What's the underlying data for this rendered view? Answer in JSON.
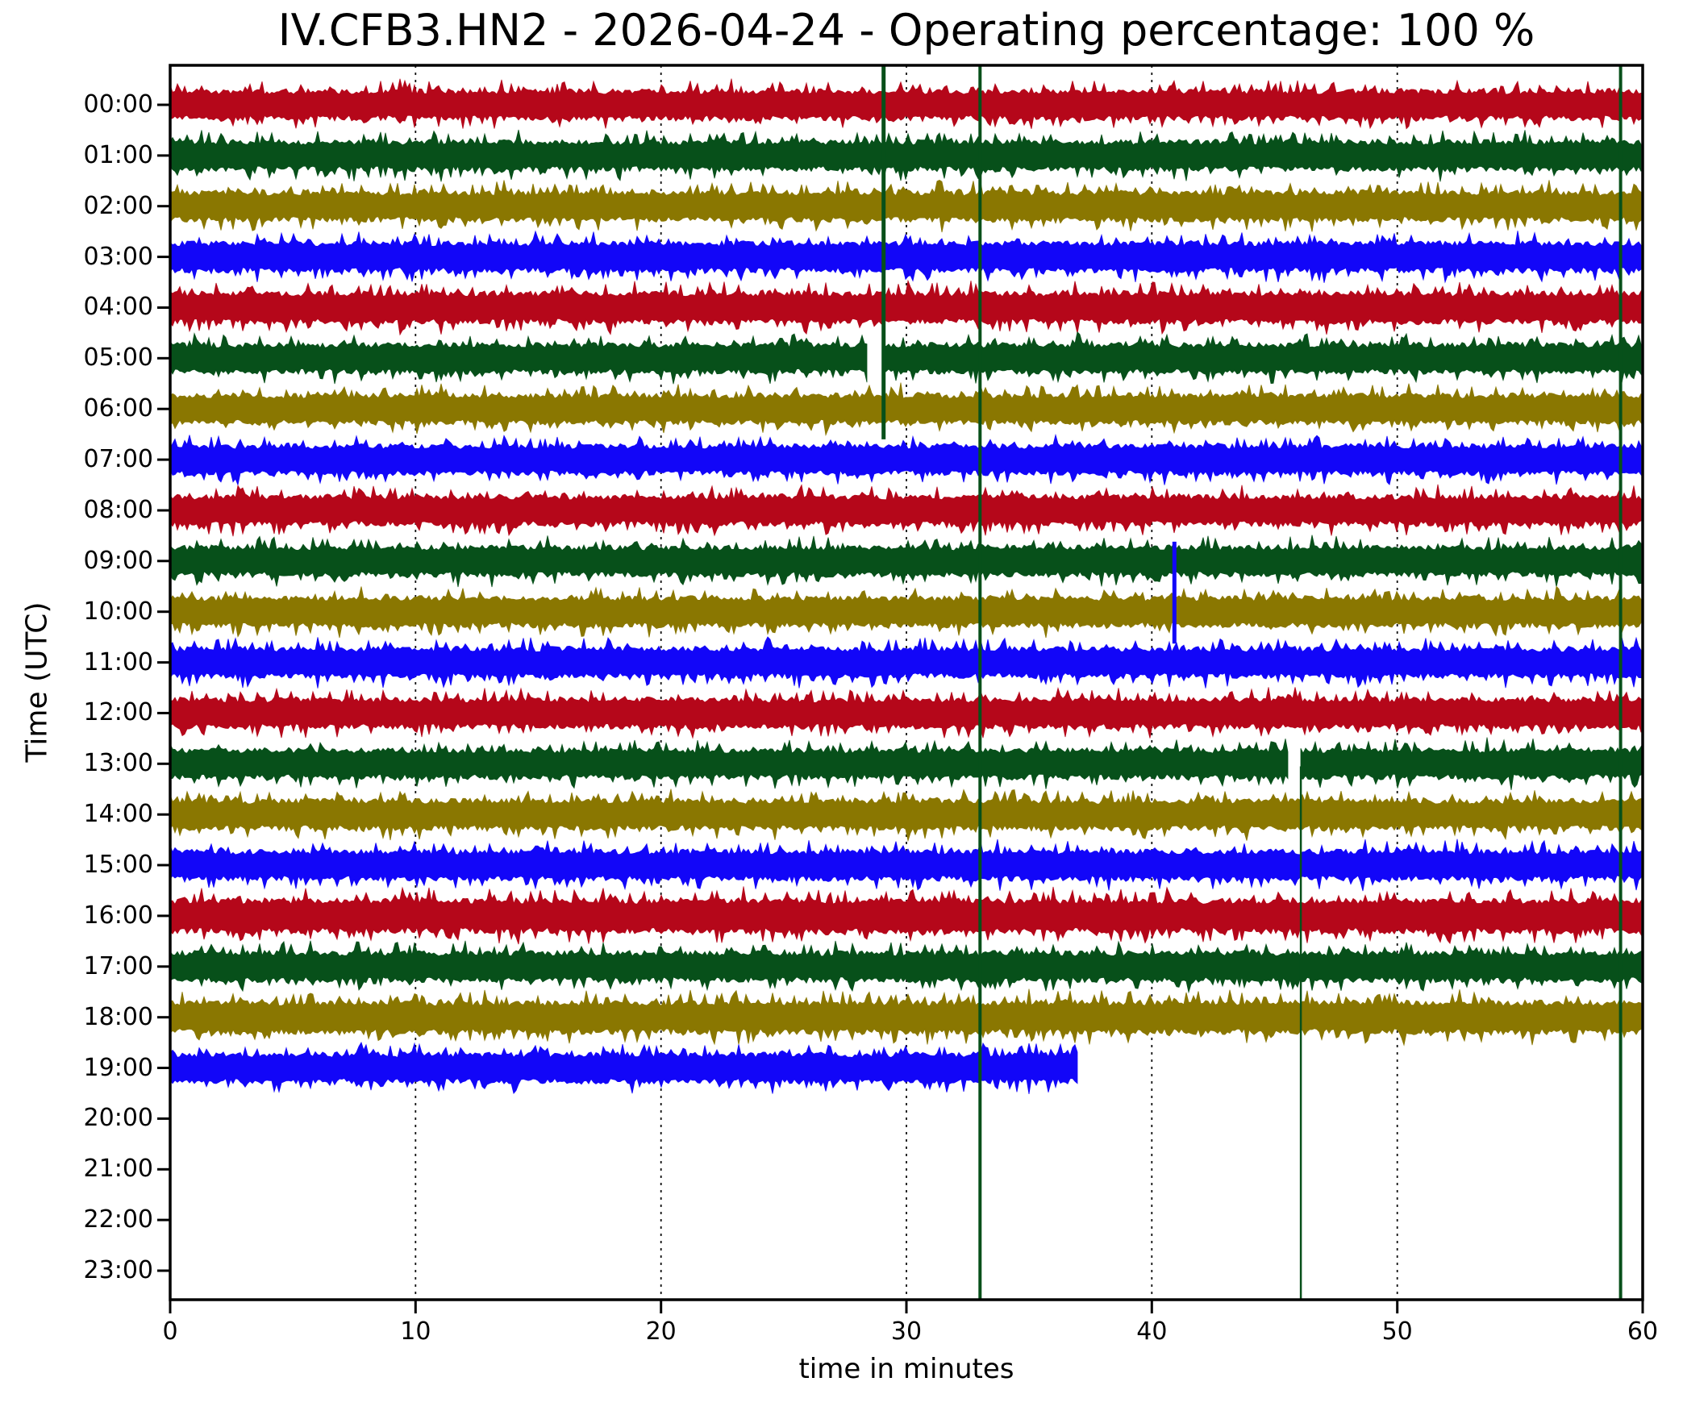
{
  "figure": {
    "title": "IV.CFB3.HN2 - 2026-04-24 - Operating percentage: 100 %",
    "station": "IV.CFB3.HN2",
    "date": "2026-04-24",
    "operating_percentage": "100 %"
  },
  "chart_data": {
    "type": "line",
    "subtype": "seismic-dayplot-helicorder",
    "title": "IV.CFB3.HN2 - 2026-04-24 - Operating percentage: 100 %",
    "xlabel": "time in minutes",
    "ylabel": "Time (UTC)",
    "x_range": [
      0,
      60
    ],
    "x_ticks": [
      "0",
      "10",
      "20",
      "30",
      "40",
      "50",
      "60"
    ],
    "grid_minutes": [
      10,
      20,
      30,
      40,
      50
    ],
    "grid_style": "dotted-vertical",
    "legend": "none",
    "trace_color_cycle": [
      "#B5071A",
      "#07501A",
      "#8A7701",
      "#1206F8"
    ],
    "y_tick_labels": [
      "00:00",
      "01:00",
      "02:00",
      "03:00",
      "04:00",
      "05:00",
      "06:00",
      "07:00",
      "08:00",
      "09:00",
      "10:00",
      "11:00",
      "12:00",
      "13:00",
      "14:00",
      "15:00",
      "16:00",
      "17:00",
      "18:00",
      "19:00",
      "20:00",
      "21:00",
      "22:00",
      "23:00"
    ],
    "rows": [
      {
        "hour": "00:00",
        "color": 0,
        "amp": 1.0,
        "segments": [
          [
            0,
            60
          ]
        ]
      },
      {
        "hour": "01:00",
        "color": 1,
        "amp": 1.0,
        "segments": [
          [
            0,
            60
          ]
        ]
      },
      {
        "hour": "02:00",
        "color": 2,
        "amp": 1.0,
        "segments": [
          [
            0,
            60
          ]
        ]
      },
      {
        "hour": "03:00",
        "color": 3,
        "amp": 1.0,
        "segments": [
          [
            0,
            60
          ]
        ]
      },
      {
        "hour": "04:00",
        "color": 0,
        "amp": 1.05,
        "segments": [
          [
            0,
            60
          ]
        ]
      },
      {
        "hour": "05:00",
        "color": 1,
        "amp": 1.0,
        "segments": [
          [
            0,
            28.45
          ],
          [
            29.07,
            60
          ]
        ]
      },
      {
        "hour": "06:00",
        "color": 2,
        "amp": 1.0,
        "segments": [
          [
            0,
            60
          ]
        ]
      },
      {
        "hour": "07:00",
        "color": 3,
        "amp": 1.0,
        "segments": [
          [
            0,
            60
          ]
        ]
      },
      {
        "hour": "08:00",
        "color": 0,
        "amp": 1.0,
        "segments": [
          [
            0,
            60
          ]
        ]
      },
      {
        "hour": "09:00",
        "color": 1,
        "amp": 1.0,
        "segments": [
          [
            0,
            60
          ]
        ]
      },
      {
        "hour": "10:00",
        "color": 2,
        "amp": 1.0,
        "segments": [
          [
            0,
            60
          ]
        ]
      },
      {
        "hour": "11:00",
        "color": 3,
        "amp": 1.0,
        "segments": [
          [
            0,
            60
          ]
        ]
      },
      {
        "hour": "12:00",
        "color": 0,
        "amp": 1.0,
        "segments": [
          [
            0,
            60
          ]
        ]
      },
      {
        "hour": "13:00",
        "color": 1,
        "amp": 1.0,
        "segments": [
          [
            0,
            45.55
          ],
          [
            46.07,
            60
          ]
        ]
      },
      {
        "hour": "14:00",
        "color": 2,
        "amp": 1.0,
        "segments": [
          [
            0,
            60
          ]
        ]
      },
      {
        "hour": "15:00",
        "color": 3,
        "amp": 1.0,
        "segments": [
          [
            0,
            60
          ]
        ]
      },
      {
        "hour": "16:00",
        "color": 0,
        "amp": 1.12,
        "segments": [
          [
            0,
            60
          ]
        ]
      },
      {
        "hour": "17:00",
        "color": 1,
        "amp": 1.0,
        "segments": [
          [
            0,
            60
          ]
        ]
      },
      {
        "hour": "18:00",
        "color": 2,
        "amp": 1.08,
        "segments": [
          [
            0,
            60
          ]
        ]
      },
      {
        "hour": "19:00",
        "color": 3,
        "amp": 1.0,
        "segments": [
          [
            0,
            37.03
          ]
        ]
      },
      {
        "hour": "20:00",
        "color": 0,
        "amp": 1.0,
        "segments": []
      },
      {
        "hour": "21:00",
        "color": 1,
        "amp": 1.0,
        "segments": []
      },
      {
        "hour": "22:00",
        "color": 2,
        "amp": 1.0,
        "segments": []
      },
      {
        "hour": "23:00",
        "color": 3,
        "amp": 1.0,
        "segments": []
      }
    ],
    "data_gaps": [
      {
        "hour": "05:00",
        "from_minute": 28.45,
        "to_minute": 29.07
      },
      {
        "hour": "13:00",
        "from_minute": 45.55,
        "to_minute": 46.07
      },
      {
        "hour": "19:00",
        "from_minute": 37.03,
        "to_minute": 60
      }
    ],
    "event_spike_lines": [
      {
        "minute": 29.07,
        "color": 1,
        "from_hour": -0.78,
        "to_hour": 6.6,
        "width": 5
      },
      {
        "minute": 33.0,
        "color": 1,
        "from_hour": -0.78,
        "to_hour": 23.57,
        "width": 4
      },
      {
        "minute": 40.92,
        "color": 3,
        "from_hour": 8.62,
        "to_hour": 10.63,
        "width": 5
      },
      {
        "minute": 46.07,
        "color": 1,
        "from_hour": 13.05,
        "to_hour": 23.57,
        "width": 2.5
      },
      {
        "minute": 59.1,
        "color": 1,
        "from_hour": -0.78,
        "to_hour": 23.57,
        "width": 4
      }
    ]
  }
}
